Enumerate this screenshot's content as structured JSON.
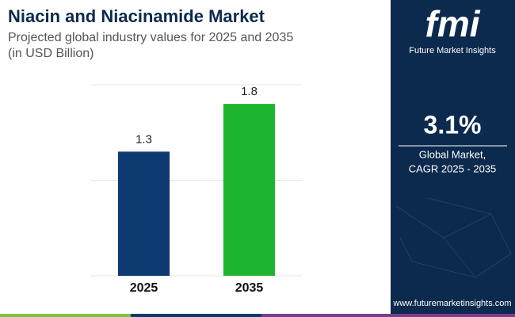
{
  "chart_data": {
    "type": "bar",
    "title": "Niacin and Niacinamide Market",
    "subtitle": [
      "Projected global industry values for 2025 and 2035",
      "(in USD Billion)"
    ],
    "categories": [
      "2025",
      "2035"
    ],
    "values": [
      1.3,
      1.8
    ],
    "colors": [
      "#0e3a72",
      "#1db52f"
    ],
    "ylim": [
      0,
      2
    ],
    "yticks": [
      0,
      1,
      2
    ],
    "grid": true
  },
  "sidebar": {
    "logo": "fmi",
    "brand": "Future Market Insights",
    "cagr": "3.1%",
    "cagr_label": [
      "Global Market,",
      "CAGR 2025 - 2035"
    ],
    "url": "www.futuremarketinsights.com"
  }
}
